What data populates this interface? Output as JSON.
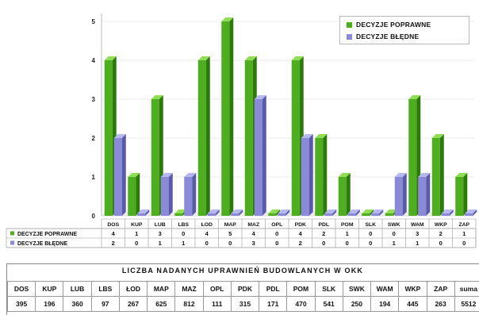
{
  "chart_data": {
    "type": "bar",
    "categories": [
      "DOS",
      "KUP",
      "LUB",
      "LBS",
      "ŁOD",
      "MAP",
      "MAZ",
      "OPL",
      "PDK",
      "PDL",
      "POM",
      "SLK",
      "SWK",
      "WAM",
      "WKP",
      "ZAP"
    ],
    "series": [
      {
        "name": "DECYZJE POPRAWNE",
        "values": [
          4,
          1,
          3,
          0,
          4,
          5,
          4,
          0,
          4,
          2,
          1,
          0,
          0,
          3,
          2,
          1
        ]
      },
      {
        "name": "DECYZJE BŁĘDNE",
        "values": [
          2,
          0,
          1,
          1,
          0,
          0,
          3,
          0,
          2,
          0,
          0,
          0,
          1,
          1,
          0,
          0
        ]
      }
    ],
    "ylim": [
      0,
      5
    ],
    "yticks": [
      "0",
      "1",
      "2",
      "3",
      "4",
      "5"
    ],
    "legend": "top-right",
    "colors": {
      "green": "#4fae1f",
      "green_side": "#2d7a0c",
      "green_top": "#8fdc55",
      "blue": "#8a8ad8",
      "blue_side": "#5a5aaa",
      "blue_top": "#b8b8f0"
    }
  },
  "table": {
    "title": "LICZBA NADANYCH UPRAWNIEŃ BUDOWLANYCH W OKK",
    "headers": [
      "DOS",
      "KUP",
      "LUB",
      "LBS",
      "ŁOD",
      "MAP",
      "MAZ",
      "OPL",
      "PDK",
      "PDL",
      "POM",
      "SLK",
      "SWK",
      "WAM",
      "WKP",
      "ZAP",
      "suma"
    ],
    "values": [
      "395",
      "196",
      "360",
      "97",
      "267",
      "625",
      "812",
      "111",
      "315",
      "171",
      "470",
      "541",
      "250",
      "194",
      "445",
      "263",
      "5512"
    ]
  }
}
